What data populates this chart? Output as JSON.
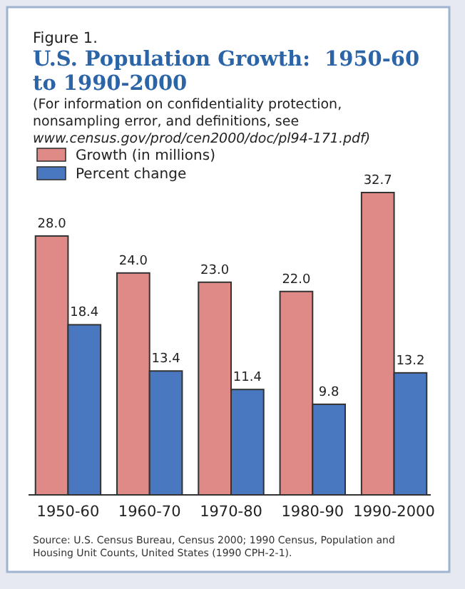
{
  "chart_data": {
    "type": "bar",
    "title": "U.S. Population Growth:  1950-60\nto 1990-2000",
    "subtitle": "(For information on confidentiality protection,\nnonsampling error, and definitions, see\nwww.census.gov/prod/cen2000/doc/pl94-171.pdf)",
    "categories": [
      "1950-60",
      "1960-70",
      "1970-80",
      "1980-90",
      "1990-2000"
    ],
    "series": [
      {
        "name": "Growth (in millions)",
        "color": "#e08a87",
        "values": [
          28.0,
          24.0,
          23.0,
          22.0,
          32.7
        ],
        "value_labels": [
          "28.0",
          "24.0",
          "23.0",
          "22.0",
          "32.7"
        ]
      },
      {
        "name": "Percent change",
        "color": "#4a78c0",
        "values": [
          18.4,
          13.4,
          11.4,
          9.8,
          13.2
        ],
        "value_labels": [
          "18.4",
          "13.4",
          "11.4",
          "9.8",
          "13.2"
        ]
      }
    ],
    "legend": "top left",
    "annotations": [
      "Figure 1.",
      "Source:  U.S. Census Bureau, Census 2000; 1990 Census, Population and\nHousing Unit Counts, United States (1990 CPH-2-1)."
    ]
  }
}
